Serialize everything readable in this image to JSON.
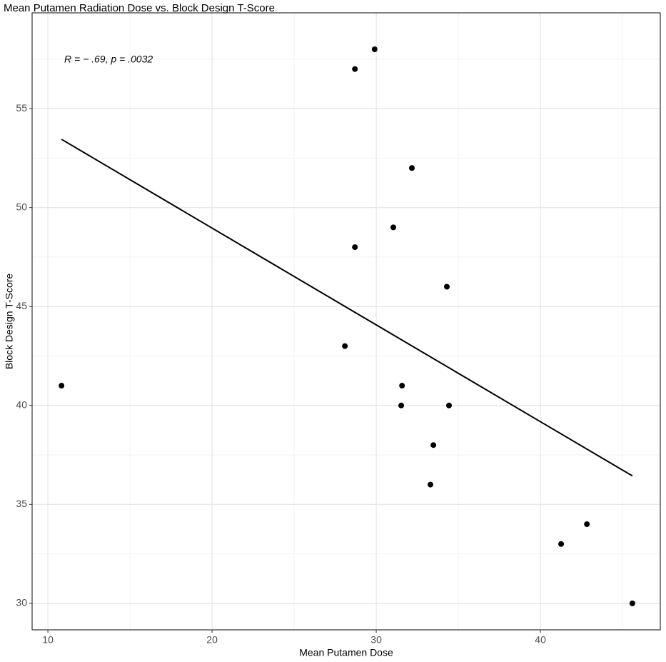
{
  "chart_data": {
    "type": "scatter",
    "title": "Mean Putamen Radiation Dose vs. Block Design T-Score",
    "x_label": "Mean Putamen Dose",
    "y_label": "Block Design T-Score",
    "annotation": "R = − .69, p = .0032",
    "x": [
      10.83,
      28.7,
      29.9,
      32.17,
      31.04,
      28.7,
      34.3,
      28.09,
      31.57,
      31.52,
      34.43,
      33.48,
      33.3,
      41.26,
      42.83,
      45.6
    ],
    "values": [
      41,
      57,
      58,
      52,
      49,
      48,
      46,
      43,
      41,
      40,
      40,
      38,
      36,
      33,
      34,
      30
    ],
    "color": "#000000",
    "fit_line": {
      "x": [
        10.83,
        45.6
      ],
      "y": [
        53.45,
        36.44
      ],
      "color": "#000000"
    },
    "xlim": [
      9.04,
      47.3
    ],
    "ylim": [
      28.66,
      59.84
    ],
    "xticks": [
      10,
      20,
      30,
      40
    ],
    "yticks": [
      30,
      35,
      40,
      45,
      50,
      55
    ],
    "xminor": [
      15,
      25,
      35,
      45
    ],
    "yminor": [
      32.5,
      37.5,
      42.5,
      47.5,
      52.5,
      57.5
    ],
    "grid": true
  }
}
